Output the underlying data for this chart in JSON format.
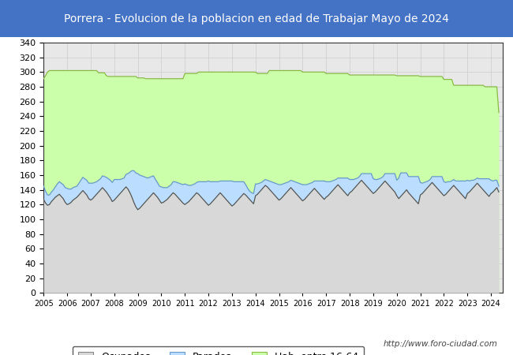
{
  "title": "Porrera - Evolucion de la poblacion en edad de Trabajar Mayo de 2024",
  "title_bg": "#4472c4",
  "title_color": "#ffffff",
  "ylim": [
    0,
    340
  ],
  "yticks": [
    0,
    20,
    40,
    60,
    80,
    100,
    120,
    140,
    160,
    180,
    200,
    220,
    240,
    260,
    280,
    300,
    320,
    340
  ],
  "xmin": 2005,
  "xmax": 2024.5,
  "url_text": "http://www.foro-ciudad.com",
  "ocupados_line_color": "#555555",
  "ocupados_fill_color": "#d8d8d8",
  "parados_line_color": "#6699cc",
  "parados_fill_color": "#bbddff",
  "hab_line_color": "#88bb44",
  "hab_fill_color": "#ccffaa",
  "grid_color": "#cccccc",
  "years": [
    2005.0,
    2005.083,
    2005.167,
    2005.25,
    2005.333,
    2005.417,
    2005.5,
    2005.583,
    2005.667,
    2005.75,
    2005.833,
    2005.917,
    2006.0,
    2006.083,
    2006.167,
    2006.25,
    2006.333,
    2006.417,
    2006.5,
    2006.583,
    2006.667,
    2006.75,
    2006.833,
    2006.917,
    2007.0,
    2007.083,
    2007.167,
    2007.25,
    2007.333,
    2007.417,
    2007.5,
    2007.583,
    2007.667,
    2007.75,
    2007.833,
    2007.917,
    2008.0,
    2008.083,
    2008.167,
    2008.25,
    2008.333,
    2008.417,
    2008.5,
    2008.583,
    2008.667,
    2008.75,
    2008.833,
    2008.917,
    2009.0,
    2009.083,
    2009.167,
    2009.25,
    2009.333,
    2009.417,
    2009.5,
    2009.583,
    2009.667,
    2009.75,
    2009.833,
    2009.917,
    2010.0,
    2010.083,
    2010.167,
    2010.25,
    2010.333,
    2010.417,
    2010.5,
    2010.583,
    2010.667,
    2010.75,
    2010.833,
    2010.917,
    2011.0,
    2011.083,
    2011.167,
    2011.25,
    2011.333,
    2011.417,
    2011.5,
    2011.583,
    2011.667,
    2011.75,
    2011.833,
    2011.917,
    2012.0,
    2012.083,
    2012.167,
    2012.25,
    2012.333,
    2012.417,
    2012.5,
    2012.583,
    2012.667,
    2012.75,
    2012.833,
    2012.917,
    2013.0,
    2013.083,
    2013.167,
    2013.25,
    2013.333,
    2013.417,
    2013.5,
    2013.583,
    2013.667,
    2013.75,
    2013.833,
    2013.917,
    2014.0,
    2014.083,
    2014.167,
    2014.25,
    2014.333,
    2014.417,
    2014.5,
    2014.583,
    2014.667,
    2014.75,
    2014.833,
    2014.917,
    2015.0,
    2015.083,
    2015.167,
    2015.25,
    2015.333,
    2015.417,
    2015.5,
    2015.583,
    2015.667,
    2015.75,
    2015.833,
    2015.917,
    2016.0,
    2016.083,
    2016.167,
    2016.25,
    2016.333,
    2016.417,
    2016.5,
    2016.583,
    2016.667,
    2016.75,
    2016.833,
    2016.917,
    2017.0,
    2017.083,
    2017.167,
    2017.25,
    2017.333,
    2017.417,
    2017.5,
    2017.583,
    2017.667,
    2017.75,
    2017.833,
    2017.917,
    2018.0,
    2018.083,
    2018.167,
    2018.25,
    2018.333,
    2018.417,
    2018.5,
    2018.583,
    2018.667,
    2018.75,
    2018.833,
    2018.917,
    2019.0,
    2019.083,
    2019.167,
    2019.25,
    2019.333,
    2019.417,
    2019.5,
    2019.583,
    2019.667,
    2019.75,
    2019.833,
    2019.917,
    2020.0,
    2020.083,
    2020.167,
    2020.25,
    2020.333,
    2020.417,
    2020.5,
    2020.583,
    2020.667,
    2020.75,
    2020.833,
    2020.917,
    2021.0,
    2021.083,
    2021.167,
    2021.25,
    2021.333,
    2021.417,
    2021.5,
    2021.583,
    2021.667,
    2021.75,
    2021.833,
    2021.917,
    2022.0,
    2022.083,
    2022.167,
    2022.25,
    2022.333,
    2022.417,
    2022.5,
    2022.583,
    2022.667,
    2022.75,
    2022.833,
    2022.917,
    2023.0,
    2023.083,
    2023.167,
    2023.25,
    2023.333,
    2023.417,
    2023.5,
    2023.583,
    2023.667,
    2023.75,
    2023.833,
    2023.917,
    2024.0,
    2024.083,
    2024.167,
    2024.25,
    2024.333
  ],
  "hab": [
    291,
    295,
    300,
    302,
    302,
    302,
    302,
    302,
    302,
    302,
    302,
    302,
    302,
    302,
    302,
    302,
    302,
    302,
    302,
    302,
    302,
    302,
    302,
    302,
    302,
    302,
    302,
    302,
    299,
    299,
    299,
    299,
    295,
    294,
    294,
    294,
    294,
    294,
    294,
    294,
    294,
    294,
    294,
    294,
    294,
    294,
    294,
    294,
    292,
    292,
    292,
    292,
    291,
    291,
    291,
    291,
    291,
    291,
    291,
    291,
    291,
    291,
    291,
    291,
    291,
    291,
    291,
    291,
    291,
    291,
    291,
    291,
    298,
    298,
    298,
    298,
    298,
    298,
    298,
    300,
    300,
    300,
    300,
    300,
    300,
    300,
    300,
    300,
    300,
    300,
    300,
    300,
    300,
    300,
    300,
    300,
    300,
    300,
    300,
    300,
    300,
    300,
    300,
    300,
    300,
    300,
    300,
    300,
    300,
    298,
    298,
    298,
    298,
    298,
    298,
    302,
    302,
    302,
    302,
    302,
    302,
    302,
    302,
    302,
    302,
    302,
    302,
    302,
    302,
    302,
    302,
    302,
    300,
    300,
    300,
    300,
    300,
    300,
    300,
    300,
    300,
    300,
    300,
    300,
    298,
    298,
    298,
    298,
    298,
    298,
    298,
    298,
    298,
    298,
    298,
    298,
    296,
    296,
    296,
    296,
    296,
    296,
    296,
    296,
    296,
    296,
    296,
    296,
    296,
    296,
    296,
    296,
    296,
    296,
    296,
    296,
    296,
    296,
    296,
    296,
    295,
    295,
    295,
    295,
    295,
    295,
    295,
    295,
    295,
    295,
    295,
    295,
    294,
    294,
    294,
    294,
    294,
    294,
    294,
    294,
    294,
    294,
    294,
    294,
    290,
    290,
    290,
    290,
    290,
    282,
    282,
    282,
    282,
    282,
    282,
    282,
    282,
    282,
    282,
    282,
    282,
    282,
    282,
    282,
    282,
    280,
    280,
    280,
    280,
    280,
    280,
    280,
    245
  ],
  "ocupados": [
    127,
    122,
    119,
    120,
    124,
    127,
    130,
    132,
    134,
    131,
    128,
    123,
    120,
    121,
    123,
    126,
    128,
    130,
    133,
    136,
    139,
    136,
    133,
    128,
    126,
    128,
    131,
    134,
    137,
    140,
    143,
    140,
    137,
    133,
    129,
    124,
    126,
    129,
    132,
    135,
    138,
    141,
    144,
    141,
    136,
    130,
    123,
    117,
    113,
    115,
    118,
    121,
    124,
    127,
    130,
    133,
    136,
    133,
    130,
    126,
    122,
    123,
    125,
    127,
    130,
    133,
    136,
    134,
    131,
    128,
    125,
    122,
    120,
    122,
    124,
    127,
    130,
    133,
    136,
    134,
    131,
    128,
    125,
    122,
    119,
    121,
    124,
    127,
    130,
    133,
    136,
    133,
    130,
    127,
    124,
    121,
    118,
    120,
    123,
    126,
    129,
    132,
    135,
    133,
    130,
    127,
    124,
    121,
    132,
    134,
    137,
    140,
    143,
    146,
    144,
    141,
    138,
    135,
    132,
    129,
    126,
    128,
    131,
    134,
    137,
    140,
    143,
    140,
    137,
    134,
    131,
    128,
    125,
    127,
    130,
    133,
    136,
    139,
    142,
    139,
    136,
    133,
    130,
    127,
    130,
    132,
    135,
    138,
    141,
    144,
    147,
    144,
    141,
    138,
    135,
    132,
    136,
    138,
    141,
    144,
    147,
    150,
    153,
    150,
    147,
    144,
    141,
    138,
    135,
    137,
    140,
    143,
    146,
    149,
    152,
    149,
    146,
    143,
    140,
    137,
    132,
    128,
    131,
    134,
    137,
    140,
    136,
    133,
    130,
    127,
    124,
    121,
    133,
    135,
    138,
    141,
    144,
    147,
    150,
    147,
    144,
    141,
    138,
    135,
    132,
    134,
    137,
    140,
    143,
    146,
    143,
    140,
    137,
    134,
    131,
    128,
    135,
    137,
    140,
    143,
    146,
    149,
    146,
    143,
    140,
    137,
    134,
    131,
    135,
    137,
    140,
    143,
    137
  ],
  "parados": [
    18,
    16,
    14,
    13,
    13,
    13,
    14,
    16,
    17,
    18,
    19,
    20,
    22,
    20,
    18,
    17,
    16,
    15,
    16,
    17,
    18,
    19,
    20,
    21,
    23,
    21,
    19,
    17,
    16,
    15,
    16,
    18,
    20,
    22,
    24,
    26,
    28,
    25,
    22,
    19,
    17,
    15,
    17,
    21,
    28,
    36,
    43,
    46,
    49,
    45,
    41,
    37,
    33,
    29,
    27,
    25,
    23,
    21,
    20,
    19,
    22,
    20,
    18,
    16,
    15,
    14,
    15,
    17,
    19,
    21,
    23,
    25,
    28,
    25,
    22,
    19,
    17,
    15,
    14,
    17,
    20,
    23,
    26,
    29,
    33,
    30,
    27,
    24,
    21,
    18,
    16,
    19,
    22,
    25,
    28,
    31,
    34,
    31,
    28,
    25,
    22,
    19,
    16,
    14,
    12,
    11,
    12,
    14,
    16,
    14,
    12,
    10,
    9,
    8,
    9,
    11,
    13,
    15,
    17,
    19,
    21,
    19,
    17,
    15,
    13,
    11,
    10,
    12,
    14,
    16,
    18,
    20,
    22,
    20,
    17,
    15,
    13,
    11,
    10,
    13,
    16,
    19,
    22,
    25,
    21,
    19,
    16,
    14,
    12,
    10,
    9,
    12,
    15,
    18,
    21,
    24,
    18,
    16,
    13,
    11,
    9,
    8,
    9,
    12,
    15,
    18,
    21,
    24,
    20,
    17,
    14,
    12,
    10,
    9,
    10,
    13,
    16,
    19,
    22,
    25,
    21,
    28,
    32,
    29,
    26,
    23,
    22,
    25,
    28,
    31,
    34,
    37,
    17,
    14,
    12,
    10,
    8,
    7,
    8,
    11,
    14,
    17,
    20,
    23,
    19,
    16,
    14,
    11,
    9,
    8,
    9,
    12,
    15,
    18,
    21,
    24,
    18,
    15,
    13,
    10,
    8,
    7,
    9,
    12,
    15,
    18,
    21,
    24,
    18,
    15,
    13,
    10,
    8
  ]
}
